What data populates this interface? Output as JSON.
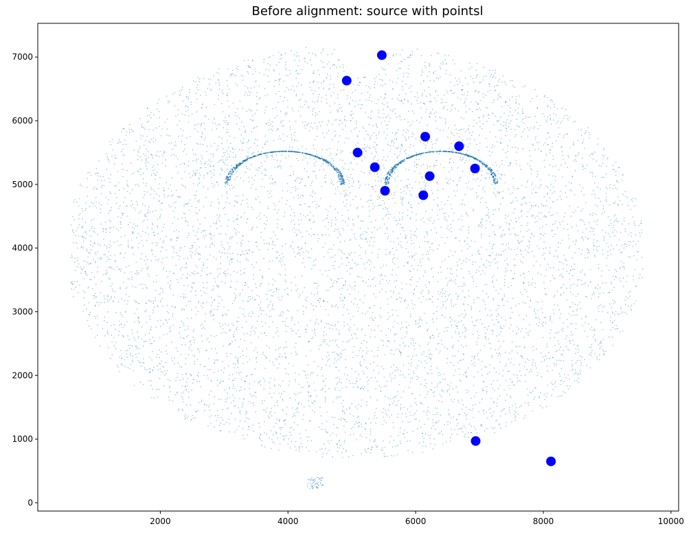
{
  "chart_data": {
    "type": "scatter",
    "title": "Before alignment: source with pointsl",
    "xlabel": "",
    "ylabel": "",
    "xlim": [
      80,
      10120
    ],
    "ylim": [
      -130,
      7530
    ],
    "xticks": [
      2000,
      4000,
      6000,
      8000,
      10000
    ],
    "yticks": [
      0,
      1000,
      2000,
      3000,
      4000,
      5000,
      6000,
      7000
    ],
    "grid": false,
    "colors": {
      "cells": "#1f77b4",
      "landmarks": "#0000ff"
    },
    "series": [
      {
        "kind": "cell-cloud",
        "description_free": true,
        "values_sample_note": null
      },
      {
        "kind": "landmarks",
        "points": [
          {
            "x": 5470,
            "y": 7030
          },
          {
            "x": 4920,
            "y": 6630
          },
          {
            "x": 6150,
            "y": 5750
          },
          {
            "x": 6680,
            "y": 5600
          },
          {
            "x": 5090,
            "y": 5500
          },
          {
            "x": 5360,
            "y": 5270
          },
          {
            "x": 6930,
            "y": 5250
          },
          {
            "x": 6220,
            "y": 5130
          },
          {
            "x": 5520,
            "y": 4900
          },
          {
            "x": 6120,
            "y": 4830
          },
          {
            "x": 6940,
            "y": 970
          },
          {
            "x": 8120,
            "y": 650
          }
        ]
      }
    ]
  }
}
